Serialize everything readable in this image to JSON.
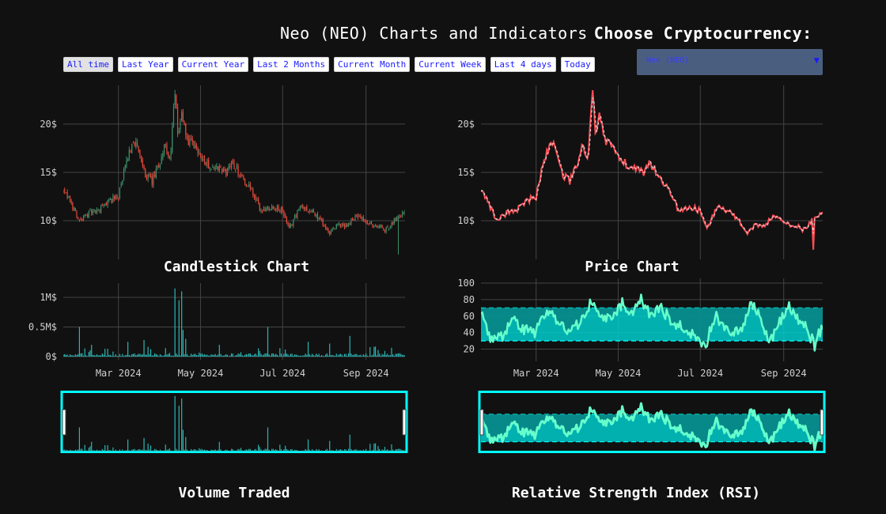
{
  "header": {
    "title": "Neo (NEO) Charts and Indicators",
    "choose_label": "Choose Cryptocurrency:"
  },
  "range_buttons": [
    "All time",
    "Last Year",
    "Current Year",
    "Last 2 Months",
    "Current Month",
    "Current Week",
    "Last 4 days",
    "Today"
  ],
  "active_range": "All time",
  "crypto_select": {
    "value": "Neo (NEO)"
  },
  "colors": {
    "background": "#111111",
    "up": "#3a8f6a",
    "down": "#e8473a",
    "price_line": "#ff4d55",
    "price_dash": "#d8d8d8",
    "volume": "#2bb5b5",
    "rsi_band": "#00cccc",
    "rsi_line": "#66ffcc",
    "slider_border": "#00ffff"
  },
  "titles": {
    "candlestick": "Candlestick Chart",
    "price": "Price Chart",
    "volume": "Volume Traded",
    "rsi": "Relative Strength Index (RSI)"
  },
  "chart_data": [
    {
      "type": "candlestick",
      "title": "Candlestick Chart",
      "x_range": [
        "2024-01-20",
        "2024-09-30"
      ],
      "y_ticks": [
        "10$",
        "15$",
        "20$"
      ],
      "ylim": [
        6,
        24
      ],
      "grid": true,
      "anchors": [
        [
          "2024-01-20",
          13
        ],
        [
          "2024-01-25",
          12
        ],
        [
          "2024-02-01",
          10
        ],
        [
          "2024-02-08",
          10.8
        ],
        [
          "2024-02-15",
          11
        ],
        [
          "2024-02-22",
          12
        ],
        [
          "2024-03-01",
          12.5
        ],
        [
          "2024-03-05",
          15
        ],
        [
          "2024-03-08",
          16.5
        ],
        [
          "2024-03-12",
          18.5
        ],
        [
          "2024-03-16",
          17
        ],
        [
          "2024-03-20",
          15
        ],
        [
          "2024-03-26",
          14
        ],
        [
          "2024-04-01",
          16
        ],
        [
          "2024-04-04",
          18
        ],
        [
          "2024-04-08",
          16
        ],
        [
          "2024-04-12",
          23
        ],
        [
          "2024-04-14",
          19
        ],
        [
          "2024-04-17",
          21
        ],
        [
          "2024-04-22",
          18
        ],
        [
          "2024-04-28",
          17.5
        ],
        [
          "2024-05-05",
          16
        ],
        [
          "2024-05-12",
          15.5
        ],
        [
          "2024-05-20",
          15
        ],
        [
          "2024-05-25",
          16
        ],
        [
          "2024-06-01",
          14.5
        ],
        [
          "2024-06-08",
          13
        ],
        [
          "2024-06-15",
          11
        ],
        [
          "2024-06-22",
          11.5
        ],
        [
          "2024-07-01",
          11
        ],
        [
          "2024-07-06",
          9
        ],
        [
          "2024-07-10",
          10.5
        ],
        [
          "2024-07-15",
          11.5
        ],
        [
          "2024-07-22",
          11
        ],
        [
          "2024-07-30",
          10
        ],
        [
          "2024-08-05",
          8.5
        ],
        [
          "2024-08-10",
          9.5
        ],
        [
          "2024-08-18",
          9.5
        ],
        [
          "2024-08-24",
          10.5
        ],
        [
          "2024-08-30",
          10
        ],
        [
          "2024-09-05",
          9.5
        ],
        [
          "2024-09-10",
          9.5
        ],
        [
          "2024-09-15",
          9
        ],
        [
          "2024-09-20",
          9.8
        ],
        [
          "2024-09-25",
          10.5
        ],
        [
          "2024-09-28",
          10.8
        ]
      ],
      "spikes": [
        [
          "2024-09-25",
          6.5
        ]
      ]
    },
    {
      "type": "line",
      "title": "Price Chart",
      "x_range": [
        "2024-01-20",
        "2024-09-30"
      ],
      "y_ticks": [
        "10$",
        "15$",
        "20$"
      ],
      "ylim": [
        6,
        24
      ],
      "grid": true,
      "series": [
        {
          "name": "",
          "source": "same close series as candlestick"
        }
      ],
      "spikes": [
        [
          "2024-04-12",
          23.5
        ],
        [
          "2024-09-23",
          7
        ]
      ]
    },
    {
      "type": "bar",
      "title": "Volume Traded",
      "x_ticks": [
        "Mar 2024",
        "May 2024",
        "Jul 2024",
        "Sep 2024"
      ],
      "x_tick_dates": [
        "2024-03-01",
        "2024-05-01",
        "2024-07-01",
        "2024-09-01"
      ],
      "y_ticks": [
        "0$",
        "0.5M$",
        "1M$"
      ],
      "ylim": [
        0,
        1000000
      ],
      "baseline": 30000,
      "spikes": [
        [
          "2024-02-01",
          500000
        ],
        [
          "2024-02-10",
          200000
        ],
        [
          "2024-03-08",
          250000
        ],
        [
          "2024-03-20",
          280000
        ],
        [
          "2024-04-12",
          1150000
        ],
        [
          "2024-04-15",
          950000
        ],
        [
          "2024-04-17",
          1100000
        ],
        [
          "2024-04-18",
          450000
        ],
        [
          "2024-04-20",
          300000
        ],
        [
          "2024-05-15",
          200000
        ],
        [
          "2024-06-20",
          500000
        ],
        [
          "2024-07-20",
          250000
        ],
        [
          "2024-08-05",
          220000
        ],
        [
          "2024-08-20",
          350000
        ],
        [
          "2024-09-20",
          150000
        ]
      ]
    },
    {
      "type": "line",
      "title": "Relative Strength Index (RSI)",
      "x_ticks": [
        "Mar 2024",
        "May 2024",
        "Jul 2024",
        "Sep 2024"
      ],
      "x_tick_dates": [
        "2024-03-01",
        "2024-05-01",
        "2024-07-01",
        "2024-09-01"
      ],
      "y_ticks": [
        "20",
        "40",
        "60",
        "80",
        "100"
      ],
      "ylim": [
        10,
        100
      ],
      "band": [
        30,
        70
      ],
      "anchors": [
        [
          "2024-01-20",
          65
        ],
        [
          "2024-01-28",
          30
        ],
        [
          "2024-02-05",
          35
        ],
        [
          "2024-02-12",
          55
        ],
        [
          "2024-02-20",
          45
        ],
        [
          "2024-02-28",
          38
        ],
        [
          "2024-03-05",
          55
        ],
        [
          "2024-03-12",
          68
        ],
        [
          "2024-03-18",
          50
        ],
        [
          "2024-03-25",
          40
        ],
        [
          "2024-04-02",
          52
        ],
        [
          "2024-04-10",
          75
        ],
        [
          "2024-04-16",
          65
        ],
        [
          "2024-04-22",
          55
        ],
        [
          "2024-04-28",
          60
        ],
        [
          "2024-05-05",
          78
        ],
        [
          "2024-05-10",
          60
        ],
        [
          "2024-05-18",
          80
        ],
        [
          "2024-05-25",
          62
        ],
        [
          "2024-06-01",
          70
        ],
        [
          "2024-06-08",
          58
        ],
        [
          "2024-06-15",
          48
        ],
        [
          "2024-06-22",
          42
        ],
        [
          "2024-06-28",
          35
        ],
        [
          "2024-07-05",
          25
        ],
        [
          "2024-07-12",
          60
        ],
        [
          "2024-07-18",
          50
        ],
        [
          "2024-07-25",
          40
        ],
        [
          "2024-08-01",
          45
        ],
        [
          "2024-08-08",
          78
        ],
        [
          "2024-08-15",
          55
        ],
        [
          "2024-08-22",
          30
        ],
        [
          "2024-08-28",
          50
        ],
        [
          "2024-09-05",
          70
        ],
        [
          "2024-09-12",
          55
        ],
        [
          "2024-09-18",
          45
        ],
        [
          "2024-09-24",
          25
        ],
        [
          "2024-09-28",
          42
        ]
      ]
    }
  ]
}
